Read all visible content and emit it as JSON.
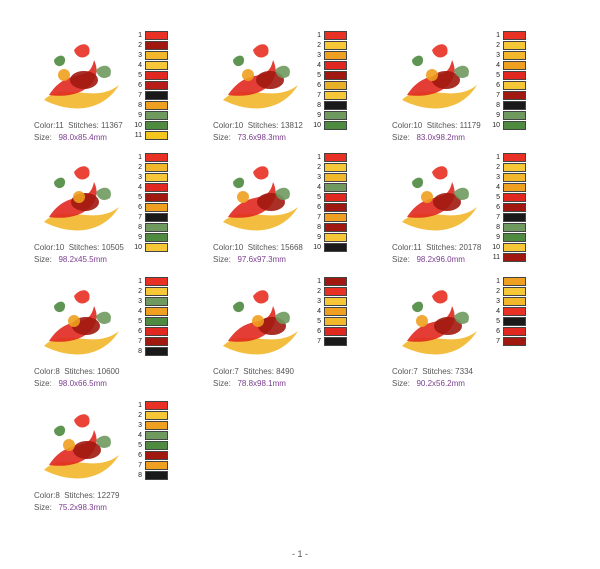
{
  "labels": {
    "color": "Color:",
    "stitches": "Stitches:",
    "size": "Size:"
  },
  "designs": [
    {
      "color_count": "11",
      "stitches": "11367",
      "size": "98.0x85.4mm",
      "thread_numbers": [
        "1",
        "2",
        "3",
        "4",
        "5",
        "6",
        "7",
        "8",
        "9",
        "10",
        "11"
      ],
      "thread_colors": [
        "#e83024",
        "#a01810",
        "#f2b72a",
        "#f6c838",
        "#e02820",
        "#b81c18",
        "#1a1a1a",
        "#f0a020",
        "#6f9a5f",
        "#4e8a3f",
        "#f5c520"
      ],
      "icon": "ornamental-firebird-corner-design"
    },
    {
      "color_count": "10",
      "stitches": "13812",
      "size": "73.6x98.3mm",
      "thread_numbers": [
        "1",
        "2",
        "3",
        "4",
        "5",
        "6",
        "7",
        "8",
        "9",
        "10"
      ],
      "thread_colors": [
        "#e83024",
        "#f6c838",
        "#f0a020",
        "#e02820",
        "#a01810",
        "#e8b028",
        "#f6c838",
        "#1a1a1a",
        "#6f9a5f",
        "#4e8a3f"
      ],
      "icon": "ornamental-firebird-oval-design"
    },
    {
      "color_count": "10",
      "stitches": "11179",
      "size": "83.0x98.2mm",
      "thread_numbers": [
        "1",
        "2",
        "3",
        "4",
        "5",
        "6",
        "7",
        "8",
        "9",
        "10"
      ],
      "thread_colors": [
        "#e83024",
        "#f6c838",
        "#f2b72a",
        "#f0a020",
        "#e02820",
        "#f6c838",
        "#a01810",
        "#1a1a1a",
        "#6f9a5f",
        "#4e8a3f"
      ],
      "icon": "ornamental-firebird-diamond-design"
    },
    {
      "color_count": "10",
      "stitches": "10505",
      "size": "98.2x45.5mm",
      "thread_numbers": [
        "1",
        "2",
        "3",
        "4",
        "5",
        "6",
        "7",
        "8",
        "9",
        "10"
      ],
      "thread_colors": [
        "#e83024",
        "#f2b72a",
        "#f6c838",
        "#e02820",
        "#a01810",
        "#f0a020",
        "#1a1a1a",
        "#6f9a5f",
        "#4e8a3f",
        "#f6c838"
      ],
      "icon": "ornamental-firebird-border-design"
    },
    {
      "color_count": "10",
      "stitches": "15668",
      "size": "97.6x97.3mm",
      "thread_numbers": [
        "1",
        "2",
        "3",
        "4",
        "5",
        "6",
        "7",
        "8",
        "9",
        "10"
      ],
      "thread_colors": [
        "#e83024",
        "#f6c838",
        "#f2b72a",
        "#6f9a5f",
        "#e02820",
        "#a01810",
        "#f0a020",
        "#a01810",
        "#f6c838",
        "#1a1a1a"
      ],
      "icon": "ornamental-firebird-round-design"
    },
    {
      "color_count": "11",
      "stitches": "20178",
      "size": "98.2x96.0mm",
      "thread_numbers": [
        "1",
        "2",
        "3",
        "4",
        "5",
        "6",
        "7",
        "8",
        "9",
        "10",
        "11"
      ],
      "thread_colors": [
        "#e83024",
        "#f6c838",
        "#f2b72a",
        "#f0a020",
        "#e02820",
        "#a01810",
        "#1a1a1a",
        "#6f9a5f",
        "#4e8a3f",
        "#f6c838",
        "#a01810"
      ],
      "icon": "ornamental-firebird-square-design"
    },
    {
      "color_count": "8",
      "stitches": "10600",
      "size": "98.0x66.5mm",
      "thread_numbers": [
        "1",
        "2",
        "3",
        "4",
        "5",
        "6",
        "7",
        "8"
      ],
      "thread_colors": [
        "#e83024",
        "#f6c838",
        "#6f9a5f",
        "#f0a020",
        "#4e8a3f",
        "#e02820",
        "#a01810",
        "#1a1a1a"
      ],
      "icon": "ornamental-firebird-triangle-design"
    },
    {
      "color_count": "7",
      "stitches": "8490",
      "size": "78.8x98.1mm",
      "thread_numbers": [
        "1",
        "2",
        "3",
        "4",
        "5",
        "6",
        "7"
      ],
      "thread_colors": [
        "#a01810",
        "#e83024",
        "#f6c838",
        "#f0a020",
        "#f2b72a",
        "#e02820",
        "#1a1a1a"
      ],
      "icon": "ornamental-firebird-standing-design"
    },
    {
      "color_count": "7",
      "stitches": "7334",
      "size": "90.2x56.2mm",
      "thread_numbers": [
        "1",
        "2",
        "3",
        "4",
        "5",
        "6",
        "7"
      ],
      "thread_colors": [
        "#f0a020",
        "#f6c838",
        "#f2b72a",
        "#e83024",
        "#1a1a1a",
        "#e02820",
        "#a01810"
      ],
      "icon": "ornamental-firebird-flowing-design"
    },
    {
      "color_count": "8",
      "stitches": "12279",
      "size": "75.2x98.3mm",
      "thread_numbers": [
        "1",
        "2",
        "3",
        "4",
        "5",
        "6",
        "7",
        "8"
      ],
      "thread_colors": [
        "#e83024",
        "#f6c838",
        "#f0a020",
        "#6f9a5f",
        "#4e8a3f",
        "#a01810",
        "#f0a020",
        "#1a1a1a"
      ],
      "icon": "ornamental-firebird-flower-design"
    }
  ],
  "footer": {
    "page": "- 1 -"
  }
}
